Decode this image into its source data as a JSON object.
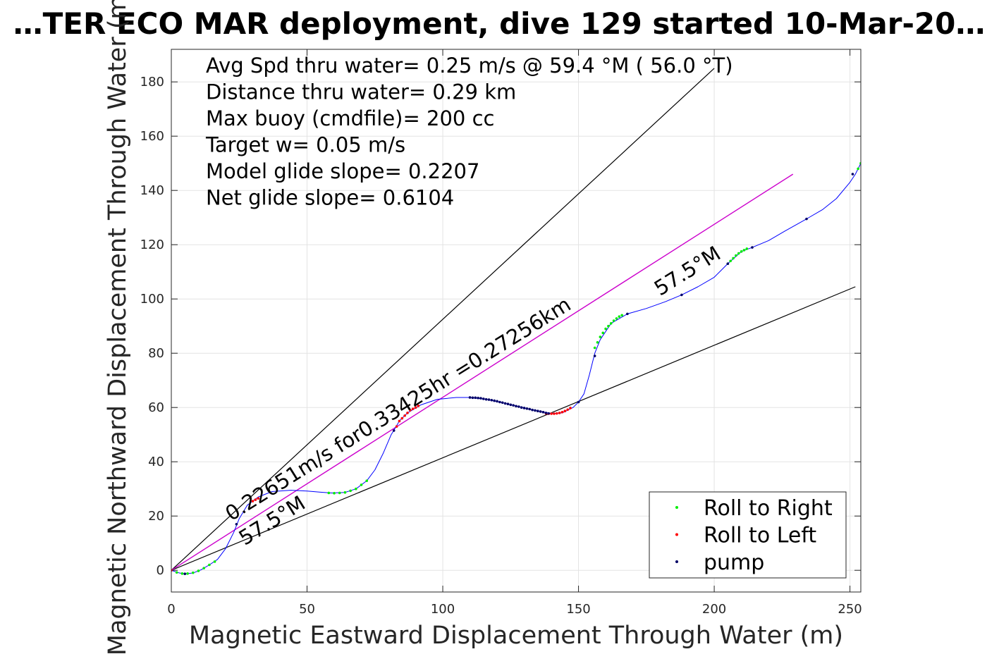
{
  "chart_data": {
    "type": "line",
    "title": "…TER ECO MAR deployment, dive 129 started 10-Mar-20…",
    "xlabel": "Magnetic Eastward Displacement Through Water (m)",
    "ylabel": "Magnetic Northward Displacement Through Water (m)",
    "xlim": [
      0,
      254
    ],
    "ylim": [
      -8,
      192
    ],
    "xticks": [
      0,
      50,
      100,
      150,
      200,
      250
    ],
    "yticks": [
      0,
      20,
      40,
      60,
      80,
      100,
      120,
      140,
      160,
      180
    ],
    "grid": true,
    "info_lines": [
      "Avg Spd thru water=  0.25 m/s @  59.4 °M ( 56.0 °T)",
      "Distance thru water=  0.29 km",
      "Max buoy (cmdfile)= 200 cc",
      "Target w= 0.05 m/s",
      "Model glide slope= 0.2207",
      "Net glide slope= 0.6104"
    ],
    "annotations": [
      {
        "text": "0.22651m/s for0.33425hr =0.27256km",
        "x": 22,
        "y": 18,
        "angle_deg": 32
      },
      {
        "text": "57.5°M",
        "x": 27,
        "y": 9,
        "angle_deg": 32
      },
      {
        "text": "57.5°M",
        "x": 180,
        "y": 101,
        "angle_deg": 32
      }
    ],
    "reference_lines": [
      {
        "name": "upper-bound-line",
        "color": "#000000",
        "points": [
          [
            0,
            0
          ],
          [
            200,
            185
          ]
        ]
      },
      {
        "name": "lower-bound-line",
        "color": "#000000",
        "points": [
          [
            0,
            0
          ],
          [
            252,
            104.5
          ]
        ]
      },
      {
        "name": "mean-heading-line",
        "color": "#cc00cc",
        "points": [
          [
            0,
            0
          ],
          [
            229,
            146
          ]
        ]
      }
    ],
    "track": {
      "color": "#0000ff",
      "points": [
        [
          0,
          0
        ],
        [
          3,
          -1
        ],
        [
          5,
          -1.3
        ],
        [
          8,
          -1
        ],
        [
          11,
          0.2
        ],
        [
          14,
          2
        ],
        [
          17,
          4
        ],
        [
          20,
          8
        ],
        [
          23,
          14
        ],
        [
          25,
          19
        ],
        [
          28,
          24
        ],
        [
          32,
          27
        ],
        [
          37,
          29
        ],
        [
          44,
          29.5
        ],
        [
          50,
          29.2
        ],
        [
          55,
          28.8
        ],
        [
          59,
          28.5
        ],
        [
          64,
          28.7
        ],
        [
          68,
          30
        ],
        [
          72,
          33
        ],
        [
          75,
          37
        ],
        [
          78,
          43
        ],
        [
          81,
          50
        ],
        [
          84,
          55
        ],
        [
          87,
          58
        ],
        [
          92,
          61
        ],
        [
          98,
          63
        ],
        [
          105,
          63.7
        ],
        [
          110,
          63.7
        ],
        [
          116,
          63
        ],
        [
          121,
          62
        ],
        [
          126,
          60.8
        ],
        [
          131,
          59.6
        ],
        [
          136,
          58.5
        ],
        [
          140,
          57.8
        ],
        [
          144,
          58
        ],
        [
          148,
          60
        ],
        [
          150,
          62
        ],
        [
          152,
          65
        ],
        [
          154,
          72
        ],
        [
          156,
          80
        ],
        [
          158,
          85
        ],
        [
          162,
          91
        ],
        [
          168,
          94.5
        ],
        [
          175,
          96.5
        ],
        [
          182,
          99
        ],
        [
          188,
          101.5
        ],
        [
          194,
          104.5
        ],
        [
          200,
          108
        ],
        [
          205,
          113
        ],
        [
          210,
          117.5
        ],
        [
          214,
          119
        ],
        [
          220,
          121.5
        ],
        [
          226,
          125
        ],
        [
          234,
          129.5
        ],
        [
          240,
          133
        ],
        [
          245,
          137
        ],
        [
          250,
          143
        ],
        [
          252,
          146
        ],
        [
          254,
          150
        ]
      ]
    },
    "series": [
      {
        "name": "Roll to Right",
        "color": "#00ee00",
        "points": [
          [
            2,
            -0.8
          ],
          [
            4,
            -1.2
          ],
          [
            6,
            -1.2
          ],
          [
            8,
            -0.9
          ],
          [
            10,
            -0.2
          ],
          [
            12,
            0.8
          ],
          [
            14,
            2
          ],
          [
            16,
            3.2
          ],
          [
            58,
            28.5
          ],
          [
            60,
            28.4
          ],
          [
            62,
            28.5
          ],
          [
            64,
            28.7
          ],
          [
            66,
            29.3
          ],
          [
            68,
            30
          ],
          [
            70,
            31.5
          ],
          [
            72,
            33
          ],
          [
            156,
            82
          ],
          [
            157,
            84
          ],
          [
            158,
            86
          ],
          [
            159,
            87.5
          ],
          [
            160,
            89
          ],
          [
            161,
            90
          ],
          [
            162,
            91
          ],
          [
            163,
            92
          ],
          [
            164,
            92.8
          ],
          [
            165,
            93.5
          ],
          [
            166,
            94
          ],
          [
            205,
            113
          ],
          [
            206,
            114
          ],
          [
            207,
            115
          ],
          [
            208,
            116
          ],
          [
            209,
            116.8
          ],
          [
            210,
            117.5
          ],
          [
            211,
            118
          ],
          [
            212,
            118.5
          ],
          [
            253,
            148
          ],
          [
            254,
            150
          ]
        ]
      },
      {
        "name": "Roll to Left",
        "color": "#ff0000",
        "points": [
          [
            0,
            0
          ],
          [
            30,
            25.5
          ],
          [
            31,
            26
          ],
          [
            32,
            26.5
          ],
          [
            83,
            53
          ],
          [
            84,
            55
          ],
          [
            85,
            56
          ],
          [
            86,
            57
          ],
          [
            87,
            58
          ],
          [
            88,
            59
          ],
          [
            89,
            59.5
          ],
          [
            90,
            60
          ],
          [
            91,
            60.6
          ],
          [
            138,
            57.8
          ],
          [
            139,
            57.7
          ],
          [
            140,
            57.7
          ],
          [
            141,
            57.7
          ],
          [
            142,
            57.8
          ],
          [
            143,
            58
          ],
          [
            144,
            58.3
          ],
          [
            145,
            58.7
          ],
          [
            146,
            59.2
          ],
          [
            147,
            59.8
          ]
        ]
      },
      {
        "name": "pump",
        "color": "#000066",
        "points": [
          [
            5,
            -1.3
          ],
          [
            24,
            17
          ],
          [
            82,
            51.5
          ],
          [
            110,
            63.7
          ],
          [
            111,
            63.6
          ],
          [
            112,
            63.6
          ],
          [
            113,
            63.5
          ],
          [
            114,
            63.4
          ],
          [
            115,
            63.2
          ],
          [
            116,
            63
          ],
          [
            117,
            62.9
          ],
          [
            118,
            62.7
          ],
          [
            119,
            62.5
          ],
          [
            120,
            62.3
          ],
          [
            121,
            62
          ],
          [
            122,
            61.8
          ],
          [
            123,
            61.5
          ],
          [
            124,
            61.3
          ],
          [
            125,
            61
          ],
          [
            126,
            60.8
          ],
          [
            127,
            60.5
          ],
          [
            128,
            60.3
          ],
          [
            129,
            60
          ],
          [
            130,
            59.8
          ],
          [
            131,
            59.6
          ],
          [
            132,
            59.4
          ],
          [
            133,
            59.1
          ],
          [
            134,
            58.9
          ],
          [
            135,
            58.7
          ],
          [
            136,
            58.5
          ],
          [
            137,
            58.3
          ],
          [
            138,
            58
          ],
          [
            139,
            57.8
          ],
          [
            150,
            62
          ],
          [
            156,
            79
          ],
          [
            168,
            94.5
          ],
          [
            188,
            101.5
          ],
          [
            205,
            113
          ],
          [
            214,
            119
          ],
          [
            234,
            129.5
          ],
          [
            251,
            146
          ]
        ]
      }
    ],
    "legend": {
      "placement": "bottom-right",
      "entries": [
        {
          "label": "Roll to Right",
          "color": "#00ee00"
        },
        {
          "label": "Roll to Left",
          "color": "#ff0000"
        },
        {
          "label": "pump",
          "color": "#000066"
        }
      ]
    }
  }
}
